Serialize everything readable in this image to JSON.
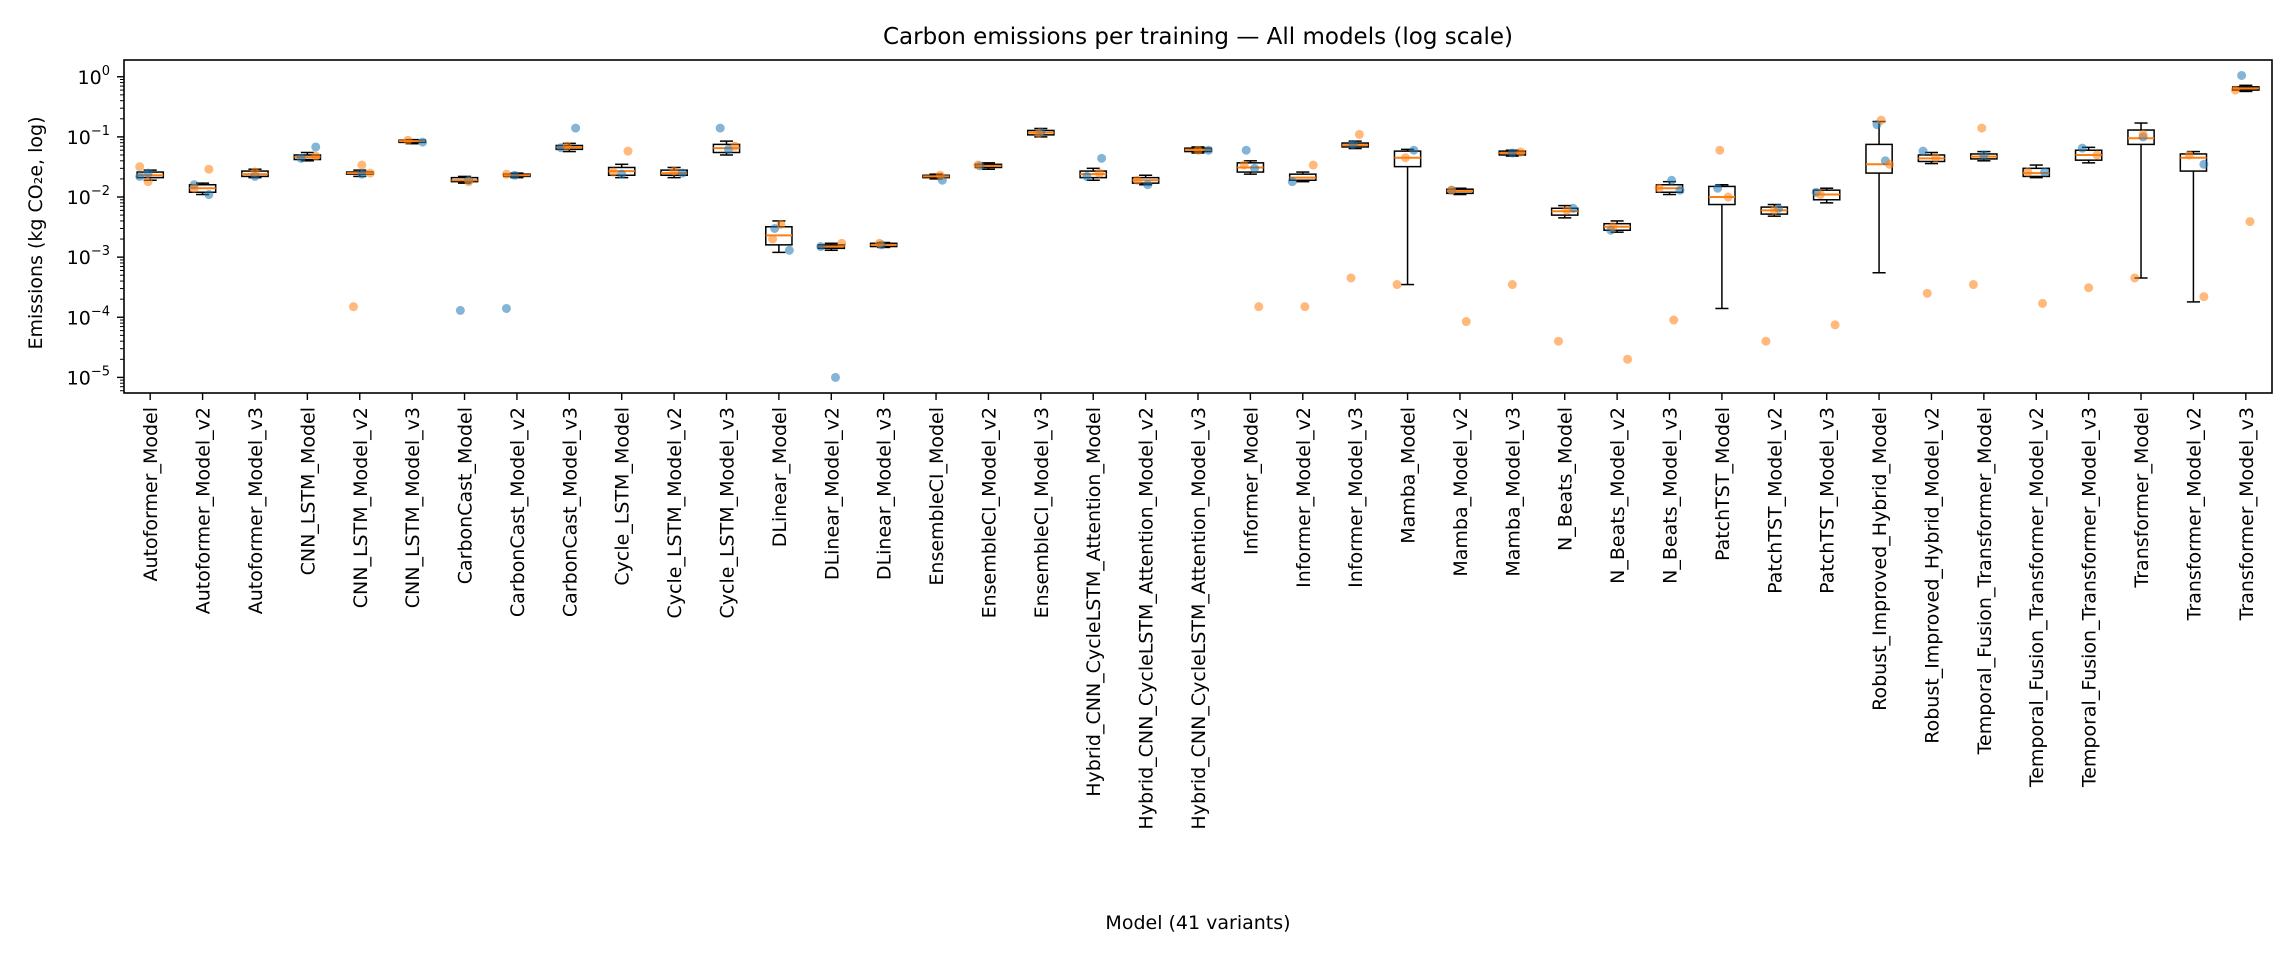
{
  "chart_data": {
    "type": "box",
    "title": "Carbon emissions per training — All models (log scale)",
    "xlabel": "Model (41 variants)",
    "ylabel": "Emissions (kg CO₂e, log)",
    "yscale": "log",
    "ylim": [
      5.5e-06,
      1.9
    ],
    "yticks": [
      {
        "value": 1e-05,
        "base": "10",
        "exp": "−5"
      },
      {
        "value": 0.0001,
        "base": "10",
        "exp": "−4"
      },
      {
        "value": 0.001,
        "base": "10",
        "exp": "−3"
      },
      {
        "value": 0.01,
        "base": "10",
        "exp": "−2"
      },
      {
        "value": 0.1,
        "base": "10",
        "exp": "−1"
      },
      {
        "value": 1,
        "base": "10",
        "exp": "0"
      }
    ],
    "grid": false,
    "colors": {
      "series_a": "#1f77b4",
      "series_b": "#ff7f0e",
      "median": "#ff7f0e",
      "box": "#000000"
    },
    "categories": [
      "Autoformer_Model",
      "Autoformer_Model_v2",
      "Autoformer_Model_v3",
      "CNN_LSTM_Model",
      "CNN_LSTM_Model_v2",
      "CNN_LSTM_Model_v3",
      "CarbonCast_Model",
      "CarbonCast_Model_v2",
      "CarbonCast_Model_v3",
      "Cycle_LSTM_Model",
      "Cycle_LSTM_Model_v2",
      "Cycle_LSTM_Model_v3",
      "DLinear_Model",
      "DLinear_Model_v2",
      "DLinear_Model_v3",
      "EnsembleCI_Model",
      "EnsembleCI_Model_v2",
      "EnsembleCI_Model_v3",
      "Hybrid_CNN_CycleLSTM_Attention_Model",
      "Hybrid_CNN_CycleLSTM_Attention_Model_v2",
      "Hybrid_CNN_CycleLSTM_Attention_Model_v3",
      "Informer_Model",
      "Informer_Model_v2",
      "Informer_Model_v3",
      "Mamba_Model",
      "Mamba_Model_v2",
      "Mamba_Model_v3",
      "N_Beats_Model",
      "N_Beats_Model_v2",
      "N_Beats_Model_v3",
      "PatchTST_Model",
      "PatchTST_Model_v2",
      "PatchTST_Model_v3",
      "Robust_Improved_Hybrid_Model",
      "Robust_Improved_Hybrid_Model_v2",
      "Temporal_Fusion_Transformer_Model",
      "Temporal_Fusion_Transformer_Model_v2",
      "Temporal_Fusion_Transformer_Model_v3",
      "Transformer_Model",
      "Transformer_Model_v2",
      "Transformer_Model_v3"
    ],
    "boxes": [
      {
        "whislo": 0.019,
        "q1": 0.021,
        "med": 0.023,
        "q3": 0.026,
        "whishi": 0.028
      },
      {
        "whislo": 0.011,
        "q1": 0.012,
        "med": 0.014,
        "q3": 0.016,
        "whishi": 0.017
      },
      {
        "whislo": 0.021,
        "q1": 0.022,
        "med": 0.024,
        "q3": 0.027,
        "whishi": 0.029
      },
      {
        "whislo": 0.04,
        "q1": 0.042,
        "med": 0.046,
        "q3": 0.05,
        "whishi": 0.055
      },
      {
        "whislo": 0.022,
        "q1": 0.024,
        "med": 0.025,
        "q3": 0.026,
        "whishi": 0.028
      },
      {
        "whislo": 0.077,
        "q1": 0.081,
        "med": 0.085,
        "q3": 0.088,
        "whishi": 0.09
      },
      {
        "whislo": 0.017,
        "q1": 0.018,
        "med": 0.019,
        "q3": 0.021,
        "whishi": 0.022
      },
      {
        "whislo": 0.021,
        "q1": 0.022,
        "med": 0.023,
        "q3": 0.024,
        "whishi": 0.025
      },
      {
        "whislo": 0.057,
        "q1": 0.062,
        "med": 0.067,
        "q3": 0.072,
        "whishi": 0.078
      },
      {
        "whislo": 0.021,
        "q1": 0.023,
        "med": 0.027,
        "q3": 0.031,
        "whishi": 0.035
      },
      {
        "whislo": 0.021,
        "q1": 0.023,
        "med": 0.025,
        "q3": 0.028,
        "whishi": 0.031
      },
      {
        "whislo": 0.05,
        "q1": 0.055,
        "med": 0.065,
        "q3": 0.075,
        "whishi": 0.085
      },
      {
        "whislo": 0.0012,
        "q1": 0.0016,
        "med": 0.0023,
        "q3": 0.0032,
        "whishi": 0.004
      },
      {
        "whislo": 0.0013,
        "q1": 0.0014,
        "med": 0.0015,
        "q3": 0.0016,
        "whishi": 0.0017
      },
      {
        "whislo": 0.00145,
        "q1": 0.0015,
        "med": 0.0016,
        "q3": 0.0017,
        "whishi": 0.00175
      },
      {
        "whislo": 0.02,
        "q1": 0.021,
        "med": 0.022,
        "q3": 0.023,
        "whishi": 0.024
      },
      {
        "whislo": 0.029,
        "q1": 0.031,
        "med": 0.033,
        "q3": 0.035,
        "whishi": 0.037
      },
      {
        "whislo": 0.1,
        "q1": 0.108,
        "med": 0.118,
        "q3": 0.128,
        "whishi": 0.138
      },
      {
        "whislo": 0.019,
        "q1": 0.021,
        "med": 0.024,
        "q3": 0.027,
        "whishi": 0.03
      },
      {
        "whislo": 0.016,
        "q1": 0.017,
        "med": 0.019,
        "q3": 0.021,
        "whishi": 0.023
      },
      {
        "whislo": 0.054,
        "q1": 0.057,
        "med": 0.061,
        "q3": 0.065,
        "whishi": 0.068
      },
      {
        "whislo": 0.024,
        "q1": 0.026,
        "med": 0.031,
        "q3": 0.037,
        "whishi": 0.04
      },
      {
        "whislo": 0.018,
        "q1": 0.019,
        "med": 0.021,
        "q3": 0.024,
        "whishi": 0.026
      },
      {
        "whislo": 0.064,
        "q1": 0.068,
        "med": 0.073,
        "q3": 0.079,
        "whishi": 0.085
      },
      {
        "whislo": 0.00035,
        "q1": 0.032,
        "med": 0.045,
        "q3": 0.058,
        "whishi": 0.062
      },
      {
        "whislo": 0.011,
        "q1": 0.0115,
        "med": 0.0125,
        "q3": 0.0135,
        "whishi": 0.014
      },
      {
        "whislo": 0.048,
        "q1": 0.05,
        "med": 0.054,
        "q3": 0.058,
        "whishi": 0.06
      },
      {
        "whislo": 0.0045,
        "q1": 0.005,
        "med": 0.0058,
        "q3": 0.0065,
        "whishi": 0.0072
      },
      {
        "whislo": 0.0026,
        "q1": 0.0028,
        "med": 0.0032,
        "q3": 0.0036,
        "whishi": 0.004
      },
      {
        "whislo": 0.011,
        "q1": 0.012,
        "med": 0.014,
        "q3": 0.016,
        "whishi": 0.018
      },
      {
        "whislo": 0.00014,
        "q1": 0.0075,
        "med": 0.01,
        "q3": 0.015,
        "whishi": 0.016
      },
      {
        "whislo": 0.0048,
        "q1": 0.0052,
        "med": 0.006,
        "q3": 0.0068,
        "whishi": 0.0075
      },
      {
        "whislo": 0.008,
        "q1": 0.009,
        "med": 0.011,
        "q3": 0.013,
        "whishi": 0.014
      },
      {
        "whislo": 0.00055,
        "q1": 0.025,
        "med": 0.035,
        "q3": 0.075,
        "whishi": 0.18
      },
      {
        "whislo": 0.036,
        "q1": 0.039,
        "med": 0.044,
        "q3": 0.05,
        "whishi": 0.055
      },
      {
        "whislo": 0.04,
        "q1": 0.043,
        "med": 0.047,
        "q3": 0.052,
        "whishi": 0.057
      },
      {
        "whislo": 0.021,
        "q1": 0.022,
        "med": 0.025,
        "q3": 0.03,
        "whishi": 0.034
      },
      {
        "whislo": 0.037,
        "q1": 0.041,
        "med": 0.05,
        "q3": 0.06,
        "whishi": 0.067
      },
      {
        "whislo": 0.00045,
        "q1": 0.075,
        "med": 0.095,
        "q3": 0.13,
        "whishi": 0.17
      },
      {
        "whislo": 0.00018,
        "q1": 0.027,
        "med": 0.045,
        "q3": 0.052,
        "whishi": 0.057
      },
      {
        "whislo": 0.57,
        "q1": 0.6,
        "med": 0.64,
        "q3": 0.68,
        "whishi": 0.72
      }
    ],
    "points_a": [
      [
        0,
        0.022
      ],
      [
        0,
        0.025
      ],
      [
        1,
        0.011
      ],
      [
        1,
        0.016
      ],
      [
        2,
        0.022
      ],
      [
        3,
        0.068
      ],
      [
        3,
        0.044
      ],
      [
        4,
        0.024
      ],
      [
        5,
        0.082
      ],
      [
        6,
        0.00013
      ],
      [
        6,
        0.019
      ],
      [
        7,
        0.00014
      ],
      [
        7,
        0.023
      ],
      [
        8,
        0.14
      ],
      [
        8,
        0.066
      ],
      [
        9,
        0.024
      ],
      [
        10,
        0.025
      ],
      [
        11,
        0.14
      ],
      [
        11,
        0.062
      ],
      [
        12,
        0.0013
      ],
      [
        12,
        0.003
      ],
      [
        13,
        1e-05
      ],
      [
        13,
        0.0015
      ],
      [
        14,
        0.0016
      ],
      [
        15,
        0.019
      ],
      [
        16,
        0.033
      ],
      [
        17,
        0.12
      ],
      [
        18,
        0.044
      ],
      [
        18,
        0.022
      ],
      [
        19,
        0.016
      ],
      [
        20,
        0.06
      ],
      [
        21,
        0.06
      ],
      [
        21,
        0.03
      ],
      [
        22,
        0.018
      ],
      [
        23,
        0.075
      ],
      [
        24,
        0.06
      ],
      [
        25,
        0.013
      ],
      [
        26,
        0.054
      ],
      [
        27,
        0.0065
      ],
      [
        28,
        0.0028
      ],
      [
        29,
        0.019
      ],
      [
        29,
        0.013
      ],
      [
        30,
        0.014
      ],
      [
        31,
        0.0065
      ],
      [
        32,
        0.012
      ],
      [
        33,
        0.16
      ],
      [
        33,
        0.04
      ],
      [
        34,
        0.058
      ],
      [
        35,
        0.05
      ],
      [
        36,
        0.026
      ],
      [
        37,
        0.065
      ],
      [
        38,
        0.1
      ],
      [
        39,
        0.035
      ],
      [
        40,
        1.05
      ]
    ],
    "points_b": [
      [
        0,
        0.032
      ],
      [
        0,
        0.018
      ],
      [
        1,
        0.029
      ],
      [
        1,
        0.014
      ],
      [
        2,
        0.026
      ],
      [
        3,
        0.048
      ],
      [
        4,
        0.00015
      ],
      [
        4,
        0.034
      ],
      [
        4,
        0.025
      ],
      [
        5,
        0.088
      ],
      [
        6,
        0.018
      ],
      [
        7,
        0.024
      ],
      [
        8,
        0.07
      ],
      [
        9,
        0.058
      ],
      [
        9,
        0.026
      ],
      [
        10,
        0.027
      ],
      [
        11,
        0.07
      ],
      [
        12,
        0.002
      ],
      [
        12,
        0.0035
      ],
      [
        13,
        0.0017
      ],
      [
        14,
        0.0017
      ],
      [
        15,
        0.023
      ],
      [
        16,
        0.034
      ],
      [
        17,
        0.115
      ],
      [
        18,
        0.025
      ],
      [
        19,
        0.019
      ],
      [
        20,
        0.06
      ],
      [
        21,
        0.00015
      ],
      [
        21,
        0.034
      ],
      [
        22,
        0.00015
      ],
      [
        22,
        0.034
      ],
      [
        23,
        0.00045
      ],
      [
        23,
        0.11
      ],
      [
        24,
        0.00035
      ],
      [
        24,
        0.045
      ],
      [
        25,
        8.5e-05
      ],
      [
        25,
        0.013
      ],
      [
        26,
        0.00035
      ],
      [
        26,
        0.056
      ],
      [
        27,
        4e-05
      ],
      [
        27,
        0.006
      ],
      [
        28,
        2e-05
      ],
      [
        28,
        0.0032
      ],
      [
        29,
        9e-05
      ],
      [
        29,
        0.014
      ],
      [
        30,
        0.06
      ],
      [
        30,
        0.01
      ],
      [
        31,
        4e-05
      ],
      [
        31,
        0.006
      ],
      [
        32,
        7.5e-05
      ],
      [
        32,
        0.011
      ],
      [
        33,
        0.19
      ],
      [
        33,
        0.035
      ],
      [
        34,
        0.00025
      ],
      [
        34,
        0.045
      ],
      [
        35,
        0.00035
      ],
      [
        35,
        0.14
      ],
      [
        36,
        0.00017
      ],
      [
        36,
        0.026
      ],
      [
        37,
        0.00031
      ],
      [
        37,
        0.05
      ],
      [
        38,
        0.00045
      ],
      [
        38,
        0.11
      ],
      [
        39,
        0.00022
      ],
      [
        39,
        0.05
      ],
      [
        40,
        0.0039
      ],
      [
        40,
        0.6
      ]
    ]
  }
}
